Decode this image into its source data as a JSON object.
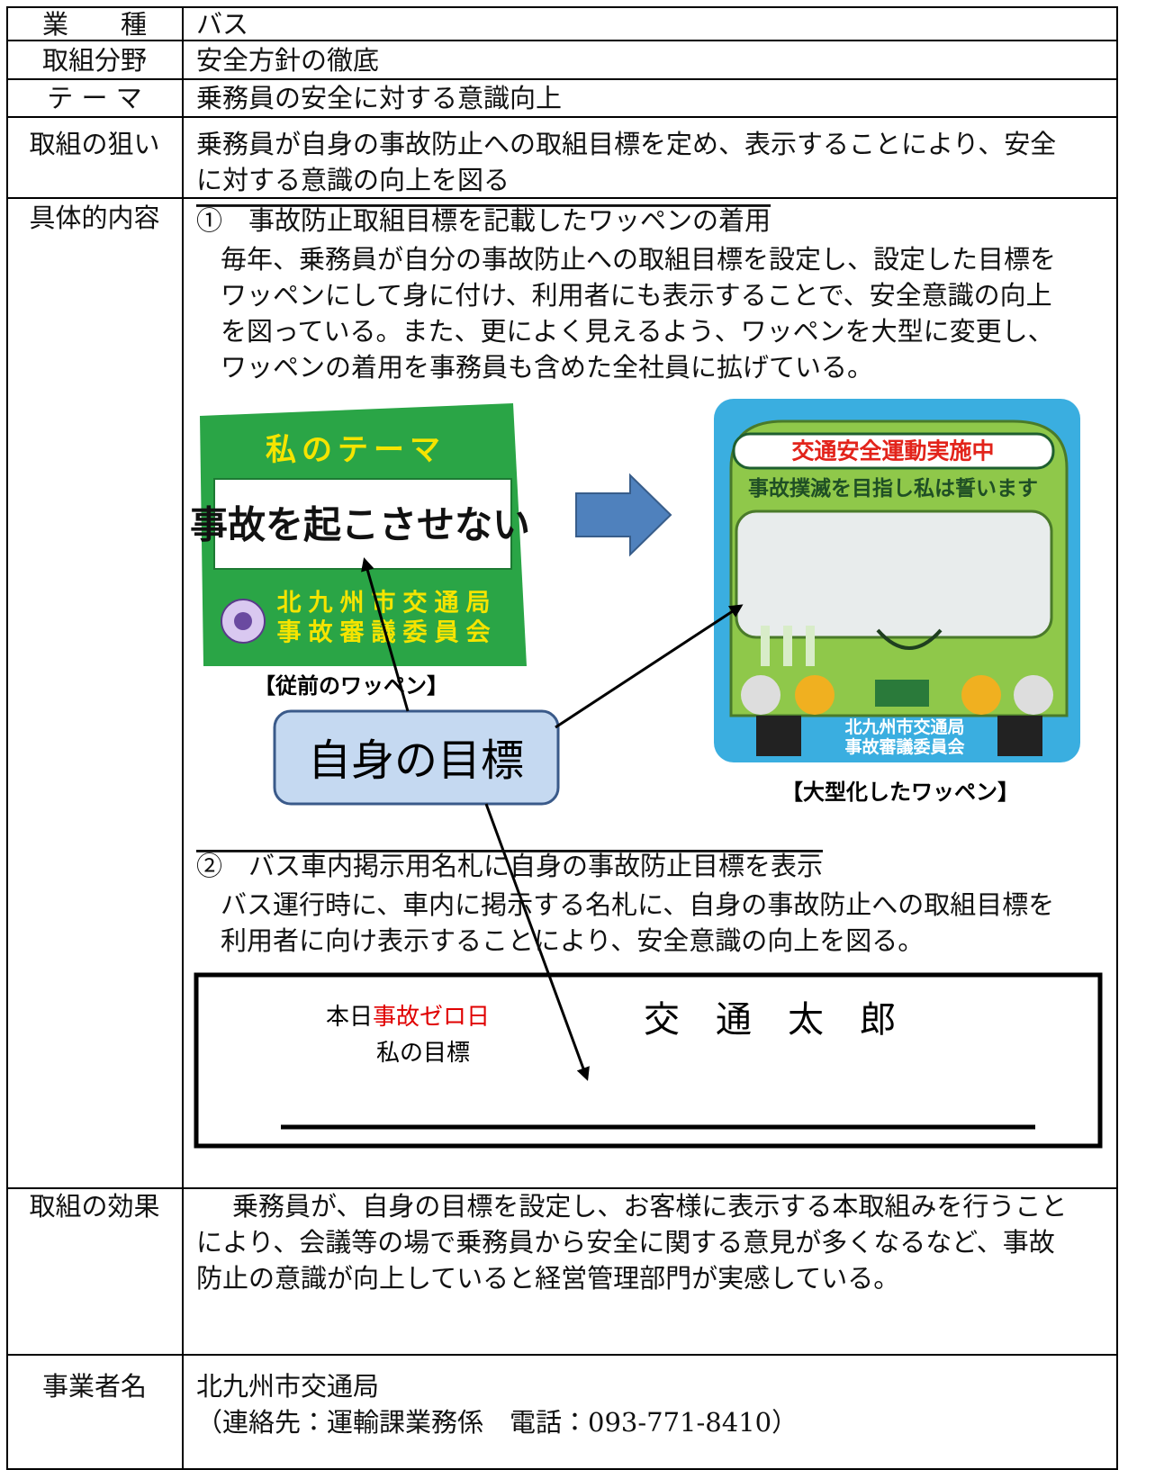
{
  "rows": [
    {
      "label": "業　　種",
      "content": [
        "バス"
      ]
    },
    {
      "label": "取組分野",
      "content": [
        "安全方針の徹底"
      ]
    },
    {
      "label": "テ ー マ",
      "content": [
        "乗務員の安全に対する意識向上"
      ]
    },
    {
      "label": "取組の狙い",
      "content": [
        "乗務員が自身の事故防止への取組目標を定め、表示することにより、安全",
        "に対する意識の向上を図る"
      ]
    },
    {
      "label": "具体的内容"
    },
    {
      "label": "取組の効果",
      "content": [
        "乗務員が、自身の目標を設定し、お客様に表示する本取組みを行うこと",
        "により、会議等の場で乗務員から安全に関する意見が多くなるなど、事故",
        "防止の意識が向上していると経営管理部門が実感している。"
      ]
    },
    {
      "label": "事業者名",
      "content": [
        "北九州市交通局",
        "（連絡先：運輸課業務係　電話：093-771-8410）"
      ]
    }
  ],
  "details": {
    "item1": {
      "heading": "①　事故防止取組目標を記載したワッペンの着用",
      "lines": [
        "毎年、乗務員が自分の事故防止への取組目標を設定し、設定した目標を",
        "ワッペンにして身に付け、利用者にも表示することで、安全意識の向上",
        "を図っている。また、更によく見えるよう、ワッペンを大型に変更し、",
        "ワッペンの着用を事務員も含めた全社員に拡げている。"
      ]
    },
    "old_badge": {
      "theme": "私のテーマ",
      "goal": "事故を起こさせない",
      "issuer": [
        "北九州市交通局",
        "事故審議委員会"
      ],
      "caption": "【従前のワッペン】"
    },
    "new_badge": {
      "banner": "交通安全運動実施中",
      "pledge": "事故撲滅を目指し私は誓います",
      "issuer": [
        "北九州市交通局",
        "事故審議委員会"
      ],
      "caption": "【大型化したワッペン】"
    },
    "callout": "自身の目標",
    "item2": {
      "heading": "②　バス車内掲示用名札に自身の事故防止目標を表示",
      "lines": [
        "バス運行時に、車内に掲示する名札に、自身の事故防止への取組目標を",
        "利用者に向け表示することにより、安全意識の向上を図る。"
      ]
    },
    "nameplate": {
      "prefix": "本日",
      "highlight": "事故ゼロ日",
      "goal_label": "私の目標",
      "name": "交　通　太　郎"
    }
  }
}
